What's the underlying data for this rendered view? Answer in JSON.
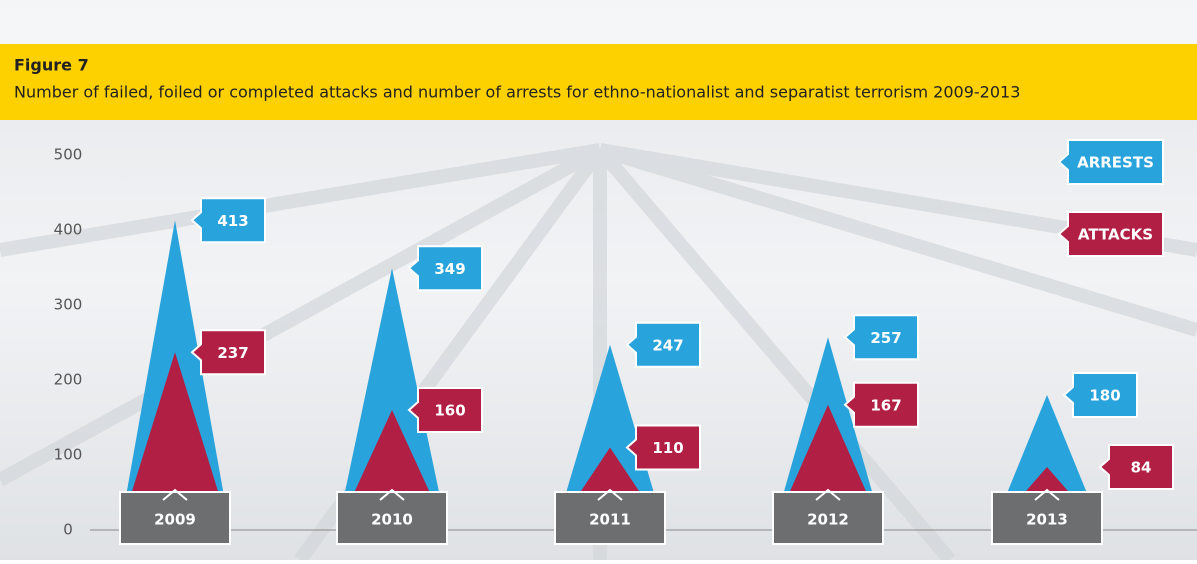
{
  "chart_data": {
    "type": "spike",
    "title": "Figure 7",
    "subtitle": "Number of failed, foiled or completed attacks and number of arrests for ethno-nationalist and separatist terrorism 2009-2013",
    "categories": [
      "2009",
      "2010",
      "2011",
      "2012",
      "2013"
    ],
    "series": [
      {
        "name": "ARRESTS",
        "color": "#29a3dc",
        "values": [
          413,
          349,
          247,
          257,
          180
        ]
      },
      {
        "name": "ATTACKS",
        "color": "#b21f44",
        "values": [
          237,
          160,
          110,
          167,
          84
        ]
      }
    ],
    "ylim": [
      0,
      500
    ],
    "yticks": [
      0,
      100,
      200,
      300,
      400,
      500
    ]
  }
}
